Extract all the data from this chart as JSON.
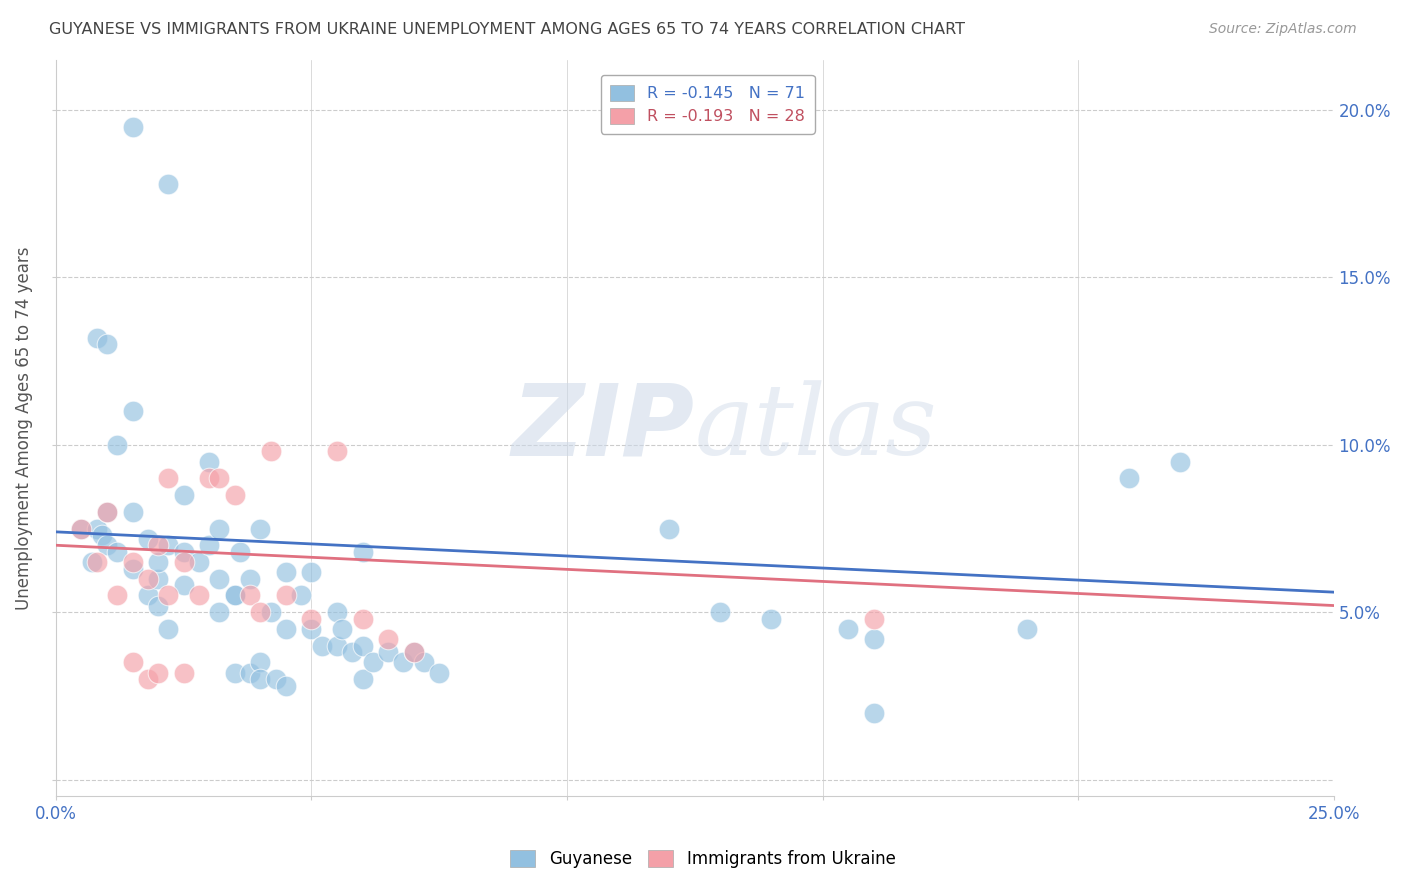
{
  "title": "GUYANESE VS IMMIGRANTS FROM UKRAINE UNEMPLOYMENT AMONG AGES 65 TO 74 YEARS CORRELATION CHART",
  "source": "Source: ZipAtlas.com",
  "ylabel": "Unemployment Among Ages 65 to 74 years",
  "xlim": [
    0.0,
    0.25
  ],
  "ylim": [
    -0.005,
    0.215
  ],
  "xticks": [
    0.0,
    0.05,
    0.1,
    0.15,
    0.2,
    0.25
  ],
  "yticks": [
    0.0,
    0.05,
    0.1,
    0.15,
    0.2
  ],
  "xticklabels": [
    "0.0%",
    "",
    "",
    "",
    "",
    "25.0%"
  ],
  "yticklabels": [
    "",
    "5.0%",
    "10.0%",
    "15.0%",
    "20.0%"
  ],
  "legend_blue_label": "R = -0.145   N = 71",
  "legend_pink_label": "R = -0.193   N = 28",
  "blue_color": "#92c0e0",
  "pink_color": "#f4a0a8",
  "watermark_zip": "ZIP",
  "watermark_atlas": "atlas",
  "blue_scatter": [
    [
      0.005,
      0.075
    ],
    [
      0.007,
      0.065
    ],
    [
      0.008,
      0.075
    ],
    [
      0.009,
      0.073
    ],
    [
      0.01,
      0.07
    ],
    [
      0.01,
      0.08
    ],
    [
      0.012,
      0.068
    ],
    [
      0.012,
      0.1
    ],
    [
      0.015,
      0.08
    ],
    [
      0.015,
      0.063
    ],
    [
      0.015,
      0.11
    ],
    [
      0.015,
      0.195
    ],
    [
      0.018,
      0.072
    ],
    [
      0.018,
      0.055
    ],
    [
      0.02,
      0.06
    ],
    [
      0.02,
      0.065
    ],
    [
      0.02,
      0.052
    ],
    [
      0.022,
      0.07
    ],
    [
      0.022,
      0.045
    ],
    [
      0.022,
      0.178
    ],
    [
      0.025,
      0.085
    ],
    [
      0.025,
      0.068
    ],
    [
      0.025,
      0.058
    ],
    [
      0.028,
      0.065
    ],
    [
      0.03,
      0.095
    ],
    [
      0.03,
      0.07
    ],
    [
      0.032,
      0.075
    ],
    [
      0.032,
      0.05
    ],
    [
      0.032,
      0.06
    ],
    [
      0.035,
      0.055
    ],
    [
      0.035,
      0.032
    ],
    [
      0.035,
      0.055
    ],
    [
      0.036,
      0.068
    ],
    [
      0.038,
      0.06
    ],
    [
      0.038,
      0.032
    ],
    [
      0.04,
      0.075
    ],
    [
      0.04,
      0.035
    ],
    [
      0.04,
      0.03
    ],
    [
      0.042,
      0.05
    ],
    [
      0.043,
      0.03
    ],
    [
      0.045,
      0.045
    ],
    [
      0.045,
      0.028
    ],
    [
      0.045,
      0.062
    ],
    [
      0.048,
      0.055
    ],
    [
      0.05,
      0.062
    ],
    [
      0.05,
      0.045
    ],
    [
      0.052,
      0.04
    ],
    [
      0.055,
      0.04
    ],
    [
      0.055,
      0.05
    ],
    [
      0.056,
      0.045
    ],
    [
      0.058,
      0.038
    ],
    [
      0.06,
      0.068
    ],
    [
      0.06,
      0.04
    ],
    [
      0.06,
      0.03
    ],
    [
      0.062,
      0.035
    ],
    [
      0.065,
      0.038
    ],
    [
      0.068,
      0.035
    ],
    [
      0.07,
      0.038
    ],
    [
      0.072,
      0.035
    ],
    [
      0.075,
      0.032
    ],
    [
      0.008,
      0.132
    ],
    [
      0.01,
      0.13
    ],
    [
      0.12,
      0.075
    ],
    [
      0.13,
      0.05
    ],
    [
      0.14,
      0.048
    ],
    [
      0.155,
      0.045
    ],
    [
      0.16,
      0.042
    ],
    [
      0.19,
      0.045
    ],
    [
      0.21,
      0.09
    ],
    [
      0.22,
      0.095
    ],
    [
      0.16,
      0.02
    ]
  ],
  "pink_scatter": [
    [
      0.005,
      0.075
    ],
    [
      0.008,
      0.065
    ],
    [
      0.01,
      0.08
    ],
    [
      0.012,
      0.055
    ],
    [
      0.015,
      0.065
    ],
    [
      0.018,
      0.06
    ],
    [
      0.02,
      0.07
    ],
    [
      0.022,
      0.055
    ],
    [
      0.022,
      0.09
    ],
    [
      0.025,
      0.065
    ],
    [
      0.028,
      0.055
    ],
    [
      0.03,
      0.09
    ],
    [
      0.032,
      0.09
    ],
    [
      0.035,
      0.085
    ],
    [
      0.038,
      0.055
    ],
    [
      0.04,
      0.05
    ],
    [
      0.042,
      0.098
    ],
    [
      0.045,
      0.055
    ],
    [
      0.05,
      0.048
    ],
    [
      0.055,
      0.098
    ],
    [
      0.06,
      0.048
    ],
    [
      0.065,
      0.042
    ],
    [
      0.07,
      0.038
    ],
    [
      0.015,
      0.035
    ],
    [
      0.018,
      0.03
    ],
    [
      0.02,
      0.032
    ],
    [
      0.025,
      0.032
    ],
    [
      0.16,
      0.048
    ]
  ],
  "blue_line_x": [
    0.0,
    0.25
  ],
  "blue_line_y": [
    0.074,
    0.056
  ],
  "pink_line_x": [
    0.0,
    0.25
  ],
  "pink_line_y": [
    0.07,
    0.052
  ],
  "bg_color": "#ffffff",
  "grid_color": "#cccccc",
  "title_color": "#444444",
  "axis_label_color": "#555555",
  "tick_label_color": "#4472c4"
}
